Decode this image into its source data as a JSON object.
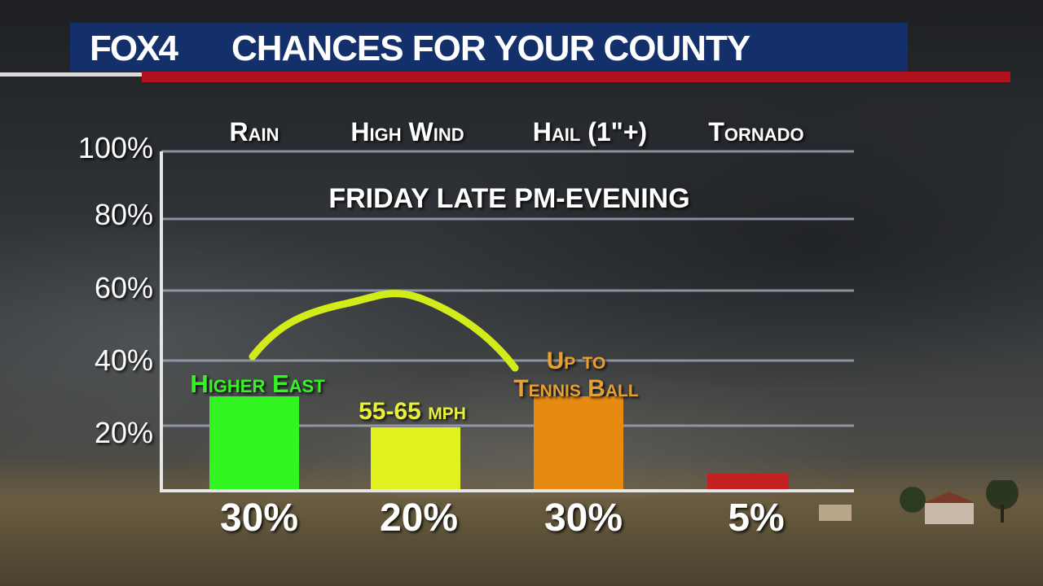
{
  "header": {
    "logo": "FOX4",
    "title": "CHANCES FOR YOUR COUNTY"
  },
  "chart_data": {
    "type": "bar",
    "subtitle": "FRIDAY LATE PM-EVENING",
    "categories": [
      "Rain",
      "High Wind",
      "Hail (1\"+)",
      "Tornado"
    ],
    "values": [
      30,
      20,
      30,
      5
    ],
    "value_labels": [
      "30%",
      "20%",
      "30%",
      "5%"
    ],
    "colors": [
      "#33f522",
      "#e1f21e",
      "#e68a12",
      "#c42222"
    ],
    "annotations": [
      {
        "lines": [
          "Higher East"
        ],
        "color": "#33f522"
      },
      {
        "lines": [
          "55-65 mph"
        ],
        "color": "#e8f03a"
      },
      {
        "lines": [
          "Up to",
          "Tennis Ball"
        ],
        "color": "#e8a030"
      }
    ],
    "yticks": [
      "100%",
      "80%",
      "60%",
      "40%",
      "20%"
    ],
    "ylim": [
      0,
      100
    ],
    "grid": true,
    "arc_color": "#d2ec1a"
  }
}
